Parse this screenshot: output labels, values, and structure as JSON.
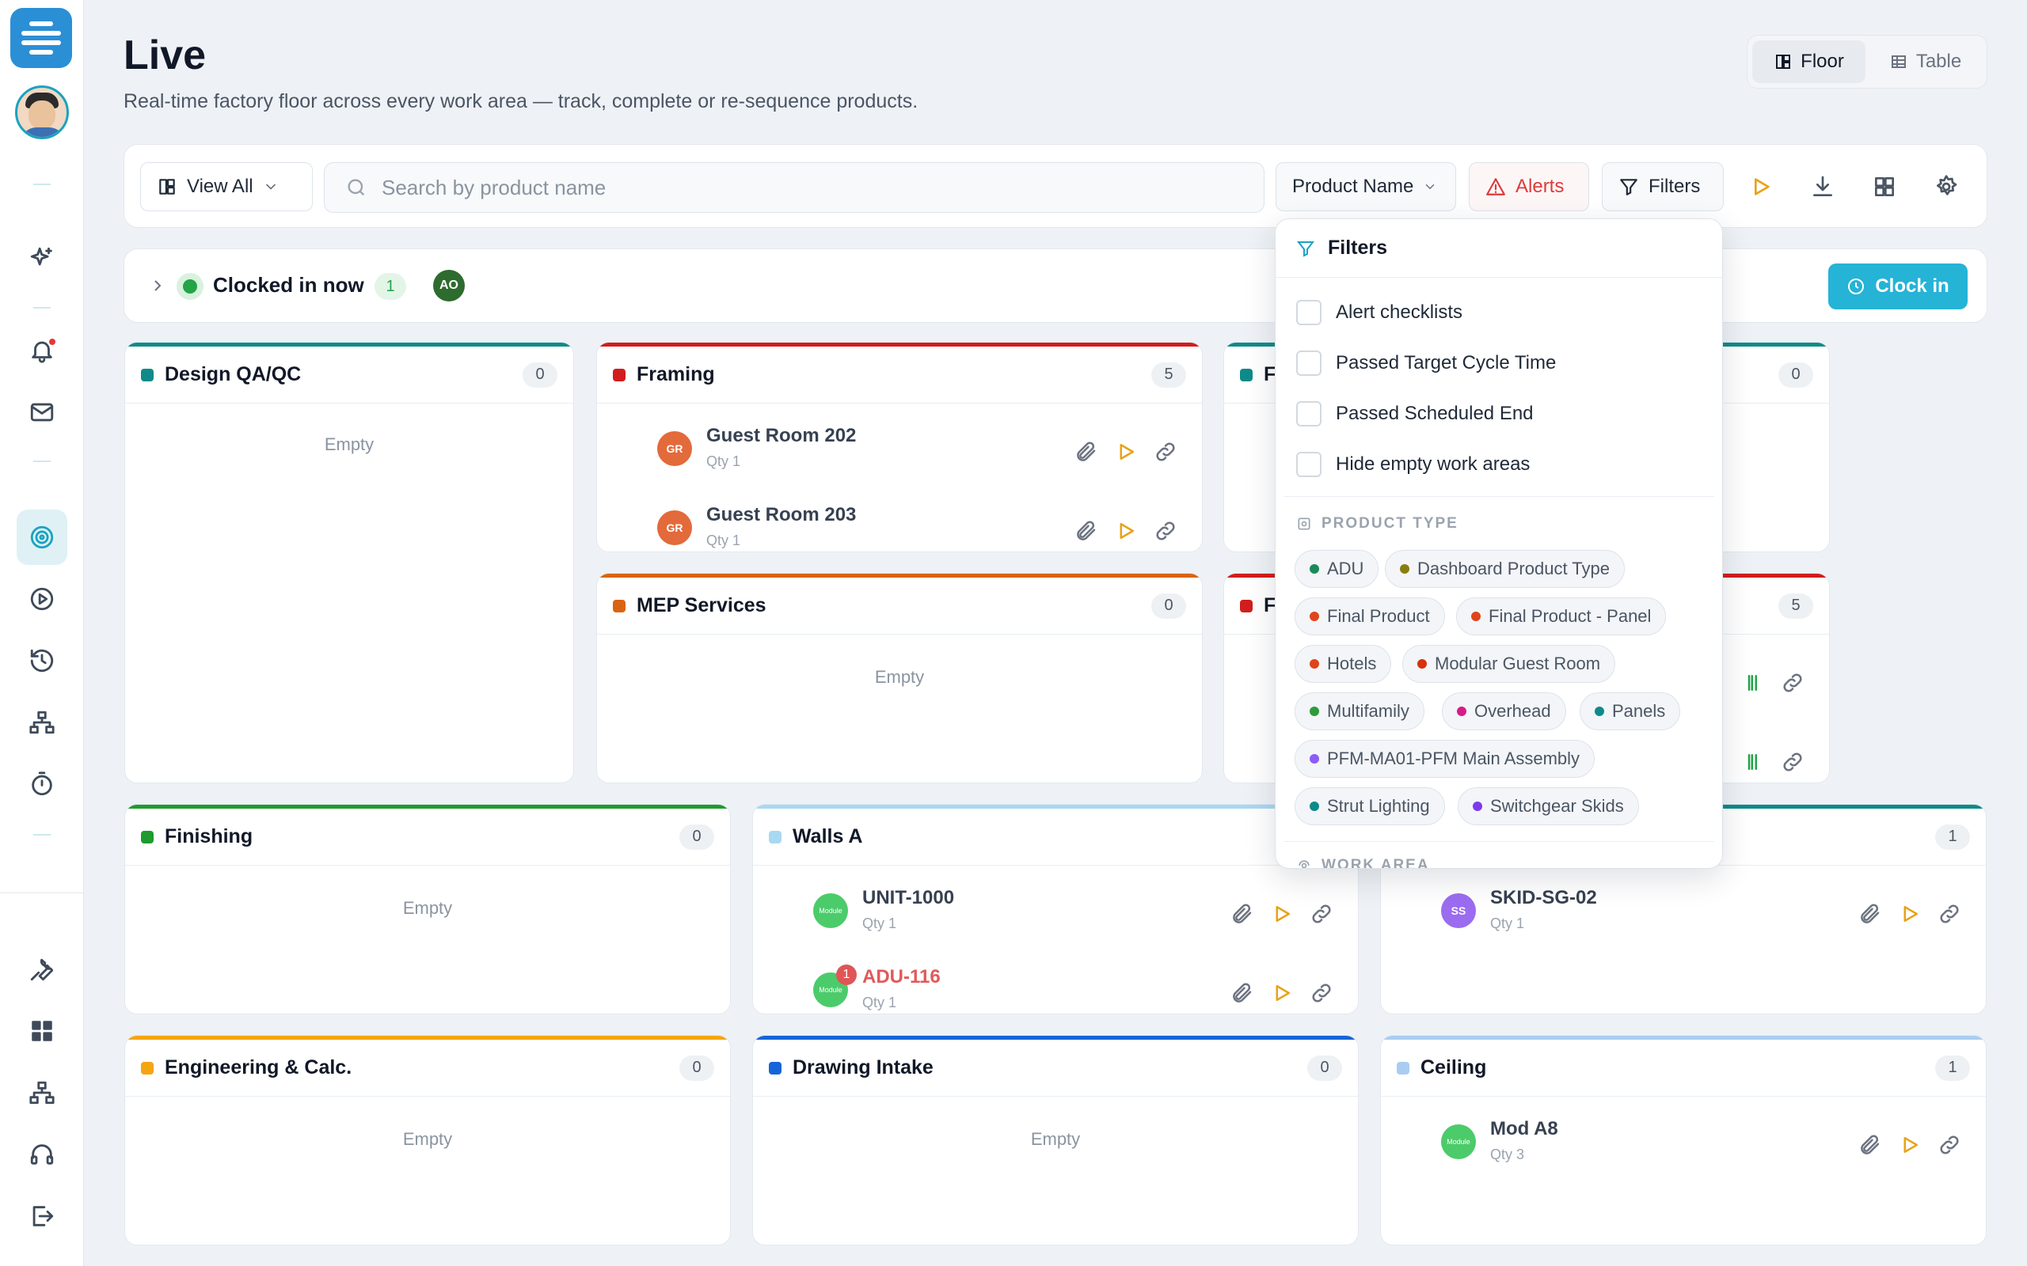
{
  "page": {
    "title": "Live",
    "subtitle": "Real-time factory floor across every work area — track, complete or re-sequence products."
  },
  "view_toggle": {
    "floor": "Floor",
    "table": "Table",
    "active": "Floor"
  },
  "toolbar": {
    "view_all": "View All",
    "search_placeholder": "Search by product name",
    "sort_field": "Product Name",
    "alerts": "Alerts",
    "filters": "Filters"
  },
  "clocked": {
    "label": "Clocked in now",
    "count": "1",
    "avatar": "AO",
    "clock_in": "Clock in"
  },
  "empty_label": "Empty",
  "work_areas": {
    "design": {
      "title": "Design QA/QC",
      "count": "0",
      "color": "#0e8a8a"
    },
    "framing": {
      "title": "Framing",
      "count": "5",
      "color": "#d11d1d",
      "items": [
        {
          "avatar": "GR",
          "name": "Guest Room 202",
          "qty": "Qty 1"
        },
        {
          "avatar": "GR",
          "name": "Guest Room 203",
          "qty": "Qty 1"
        }
      ]
    },
    "hidden_top": {
      "title": "F",
      "count": "0",
      "color": "#0e8a8a"
    },
    "mep": {
      "title": "MEP Services",
      "count": "0",
      "color": "#d9640f"
    },
    "hidden_mid": {
      "title": "F",
      "count": "5",
      "color": "#d11d1d"
    },
    "finishing": {
      "title": "Finishing",
      "count": "0",
      "color": "#1f9b2e"
    },
    "walls": {
      "title": "Walls A",
      "count": "",
      "color": "#a9d8f2",
      "items": [
        {
          "avatar": "Module",
          "name": "UNIT-1000",
          "qty": "Qty 1"
        },
        {
          "avatar": "Module",
          "name": "ADU-116",
          "qty": "Qty 1",
          "badge": "1"
        }
      ]
    },
    "skids": {
      "title": "",
      "count": "1",
      "color": "#0e8a8a",
      "items": [
        {
          "avatar": "SS",
          "name": "SKID-SG-02",
          "qty": "Qty 1"
        }
      ]
    },
    "engineering": {
      "title": "Engineering & Calc.",
      "count": "0",
      "color": "#f5a511"
    },
    "drawing": {
      "title": "Drawing Intake",
      "count": "0",
      "color": "#1565d8"
    },
    "ceiling": {
      "title": "Ceiling",
      "count": "1",
      "color": "#a9cdf2",
      "items": [
        {
          "avatar": "Module",
          "name": "Mod A8",
          "qty": "Qty 3"
        }
      ]
    }
  },
  "filters_panel": {
    "title": "Filters",
    "checks": [
      "Alert checklists",
      "Passed Target Cycle Time",
      "Passed Scheduled End",
      "Hide empty work areas"
    ],
    "product_type_label": "PRODUCT TYPE",
    "product_types": [
      {
        "label": "ADU",
        "color": "#1a8a5a"
      },
      {
        "label": "Dashboard Product Type",
        "color": "#8a7d10"
      },
      {
        "label": "Final Product",
        "color": "#e0441b"
      },
      {
        "label": "Final Product - Panel",
        "color": "#e0441b"
      },
      {
        "label": "Hotels",
        "color": "#e0441b"
      },
      {
        "label": "Modular Guest Room",
        "color": "#d8320f"
      },
      {
        "label": "Multifamily",
        "color": "#2e9b3a"
      },
      {
        "label": "Overhead",
        "color": "#d81b8a"
      },
      {
        "label": "Panels",
        "color": "#0e8a8a"
      },
      {
        "label": "PFM-MA01-PFM Main Assembly",
        "color": "#8b5cf6"
      },
      {
        "label": "Strut Lighting",
        "color": "#0e8a8a"
      },
      {
        "label": "Switchgear Skids",
        "color": "#7c3aed"
      }
    ],
    "work_area_label": "WORK AREA"
  }
}
